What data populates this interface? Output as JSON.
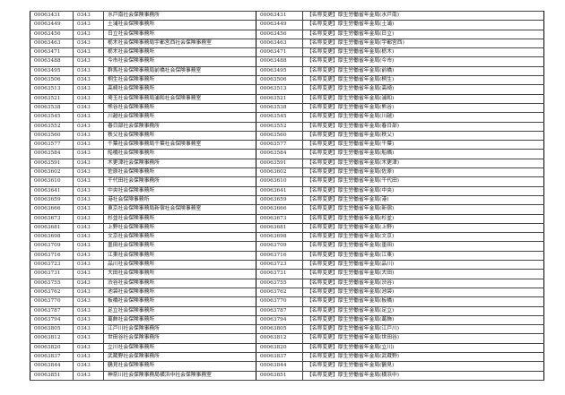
{
  "agency_code": "0343",
  "rows": [
    {
      "code": "00063431",
      "name": "水戸南社会保険事務所",
      "new_name": "【名称変更】厚生労働省年金局(水戸南)"
    },
    {
      "code": "00063449",
      "name": "土浦社会保険事務所",
      "new_name": "【名称変更】厚生労働省年金局(土浦)"
    },
    {
      "code": "00063456",
      "name": "日立社会保険事務所",
      "new_name": "【名称変更】厚生労働省年金局(日立)"
    },
    {
      "code": "00063463",
      "name": "栃木社会保険事務局宇都宮西社会保険事務室",
      "new_name": "【名称変更】厚生労働省年金局(宇都宮西)"
    },
    {
      "code": "00063471",
      "name": "栃木社会保険事務所",
      "new_name": "【名称変更】厚生労働省年金局(栃木)"
    },
    {
      "code": "00063488",
      "name": "今市社会保険事務所",
      "new_name": "【名称変更】厚生労働省年金局(今市)"
    },
    {
      "code": "00063495",
      "name": "群馬社会保険事務局前橋社会保険事務室",
      "new_name": "【名称変更】厚生労働省年金局(前橋)"
    },
    {
      "code": "00063506",
      "name": "桐生社会保険事務所",
      "new_name": "【名称変更】厚生労働省年金局(桐生)"
    },
    {
      "code": "00063513",
      "name": "高崎社会保険事務所",
      "new_name": "【名称変更】厚生労働省年金局(高崎)"
    },
    {
      "code": "00063521",
      "name": "埼玉社会保険事務局浦和社会保険事務室",
      "new_name": "【名称変更】厚生労働省年金局(浦和)"
    },
    {
      "code": "00063538",
      "name": "熊谷社会保険事務所",
      "new_name": "【名称変更】厚生労働省年金局(熊谷)"
    },
    {
      "code": "00063545",
      "name": "川越社会保険事務所",
      "new_name": "【名称変更】厚生労働省年金局(川越)"
    },
    {
      "code": "00063552",
      "name": "春日部社会保険事務所",
      "new_name": "【名称変更】厚生労働省年金局(春日部)"
    },
    {
      "code": "00063560",
      "name": "秩父社会保険事務所",
      "new_name": "【名称変更】厚生労働省年金局(秩父)"
    },
    {
      "code": "00063577",
      "name": "千葉社会保険事務局千葉社会保険事務室",
      "new_name": "【名称変更】厚生労働省年金局(千葉)"
    },
    {
      "code": "00063584",
      "name": "船橋社会保険事務所",
      "new_name": "【名称変更】厚生労働省年金局(船橋)"
    },
    {
      "code": "00063591",
      "name": "木更津社会保険事務所",
      "new_name": "【名称変更】厚生労働省年金局(木更津)"
    },
    {
      "code": "00063602",
      "name": "佐原社会保険事務所",
      "new_name": "【名称変更】厚生労働省年金局(佐原)"
    },
    {
      "code": "00063610",
      "name": "千代田社会保険事務所",
      "new_name": "【名称変更】厚生労働省年金局(千代田)"
    },
    {
      "code": "00063641",
      "name": "中央社会保険事務所",
      "new_name": "【名称変更】厚生労働省年金局(中央)"
    },
    {
      "code": "00063659",
      "name": "港社会保険事務所",
      "new_name": "【名称変更】厚生労働省年金局(港)"
    },
    {
      "code": "00063666",
      "name": "東京社会保険事務局新宿社会保険事務室",
      "new_name": "【名称変更】厚生労働省年金局(新宿)"
    },
    {
      "code": "00063673",
      "name": "杉並社会保険事務所",
      "new_name": "【名称変更】厚生労働省年金局(杉並)"
    },
    {
      "code": "00063681",
      "name": "上野社会保険事務所",
      "new_name": "【名称変更】厚生労働省年金局(上野)"
    },
    {
      "code": "00063698",
      "name": "文京社会保険事務所",
      "new_name": "【名称変更】厚生労働省年金局(文京)"
    },
    {
      "code": "00063709",
      "name": "墨田社会保険事務所",
      "new_name": "【名称変更】厚生労働省年金局(墨田)"
    },
    {
      "code": "00063716",
      "name": "江東社会保険事務所",
      "new_name": "【名称変更】厚生労働省年金局(江東)"
    },
    {
      "code": "00063723",
      "name": "品川社会保険事務所",
      "new_name": "【名称変更】厚生労働省年金局(品川)"
    },
    {
      "code": "00063731",
      "name": "大田社会保険事務所",
      "new_name": "【名称変更】厚生労働省年金局(大田)"
    },
    {
      "code": "00063755",
      "name": "渋谷社会保険事務所",
      "new_name": "【名称変更】厚生労働省年金局(渋谷)"
    },
    {
      "code": "00063762",
      "name": "池袋社会保険事務所",
      "new_name": "【名称変更】厚生労働省年金局(池袋)"
    },
    {
      "code": "00063770",
      "name": "板橋社会保険事務所",
      "new_name": "【名称変更】厚生労働省年金局(板橋)"
    },
    {
      "code": "00063787",
      "name": "足立社会保険事務所",
      "new_name": "【名称変更】厚生労働省年金局(足立)"
    },
    {
      "code": "00063794",
      "name": "葛飾社会保険事務所",
      "new_name": "【名称変更】厚生労働省年金局(葛飾)"
    },
    {
      "code": "00063805",
      "name": "江戸川社会保険事務所",
      "new_name": "【名称変更】厚生労働省年金局(江戸川)"
    },
    {
      "code": "00063812",
      "name": "世田谷社会保険事務所",
      "new_name": "【名称変更】厚生労働省年金局(世田谷)"
    },
    {
      "code": "00063820",
      "name": "立川社会保険事務所",
      "new_name": "【名称変更】厚生労働省年金局(立川)"
    },
    {
      "code": "00063837",
      "name": "武蔵野社会保険事務所",
      "new_name": "【名称変更】厚生労働省年金局(武蔵野)"
    },
    {
      "code": "00063844",
      "name": "鶴見社会保険事務所",
      "new_name": "【名称変更】厚生労働省年金局(鶴見)"
    },
    {
      "code": "00063851",
      "name": "神奈川社会保険事務局横浜中社会保険事務室",
      "new_name": "【名称変更】厚生労働省年金局(横浜中)"
    }
  ]
}
